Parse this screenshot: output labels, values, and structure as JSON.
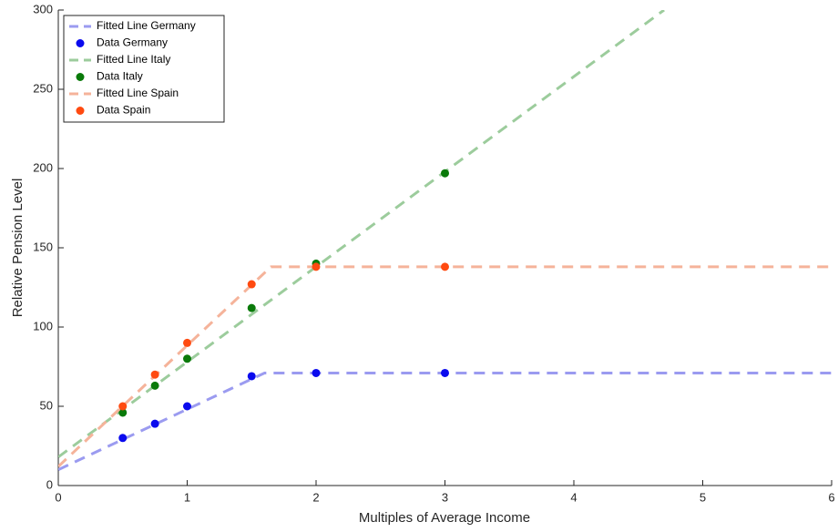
{
  "chart_data": {
    "type": "line",
    "xlabel": "Multiples of Average Income",
    "ylabel": "Relative Pension Level",
    "xlim": [
      0,
      6
    ],
    "xticks": [
      0,
      1,
      2,
      3,
      4,
      5,
      6
    ],
    "ylim": [
      0,
      300
    ],
    "yticks": [
      0,
      50,
      100,
      150,
      200,
      250,
      300
    ],
    "grid": false,
    "legend": "upper left",
    "series": [
      {
        "name": "Fitted Line Germany",
        "color": "#9b9bf0",
        "mode": "dashed",
        "x": [
          0,
          1.6,
          6
        ],
        "values": [
          10,
          71,
          71
        ]
      },
      {
        "name": "Data Germany",
        "color": "#0a0aee",
        "mode": "markers",
        "x": [
          0.5,
          0.75,
          1,
          1.5,
          2,
          3
        ],
        "values": [
          30,
          39,
          50,
          69,
          71,
          71
        ]
      },
      {
        "name": "Fitted Line Italy",
        "color": "#9ccc9c",
        "mode": "dashed",
        "x": [
          0,
          4.7
        ],
        "values": [
          18,
          300
        ]
      },
      {
        "name": "Data Italy",
        "color": "#0a7a0a",
        "mode": "markers",
        "x": [
          0.5,
          0.75,
          1,
          1.5,
          2,
          3
        ],
        "values": [
          46,
          63,
          80,
          112,
          140,
          197
        ]
      },
      {
        "name": "Fitted Line Spain",
        "color": "#f5b39a",
        "mode": "dashed",
        "x": [
          0,
          1.65,
          6
        ],
        "values": [
          12,
          138,
          138
        ]
      },
      {
        "name": "Data Spain",
        "color": "#ff4a10",
        "mode": "markers",
        "x": [
          0.5,
          0.75,
          1,
          1.5,
          2,
          3
        ],
        "values": [
          50,
          70,
          90,
          127,
          138,
          138
        ]
      }
    ]
  }
}
